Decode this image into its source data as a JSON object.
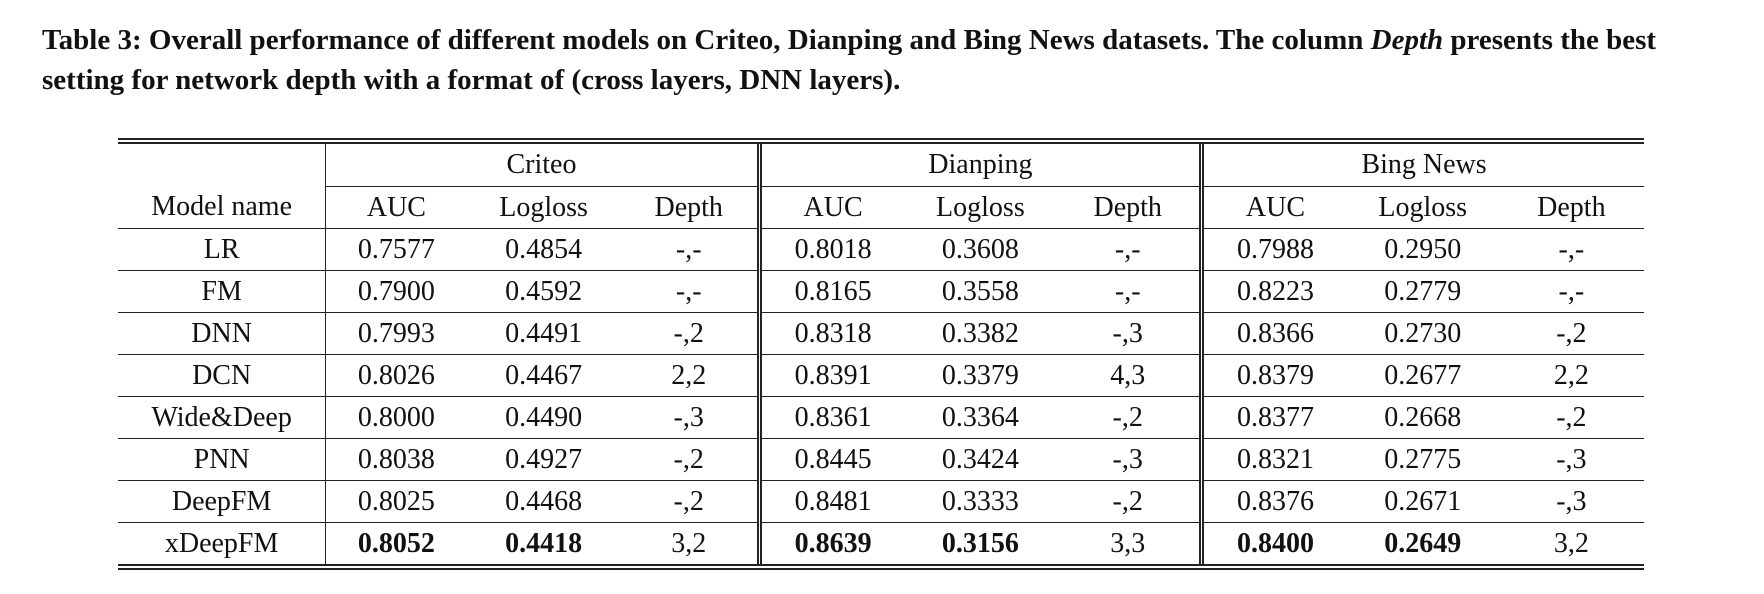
{
  "caption": {
    "label": "Table 3: Overall performance of different models on Criteo, Dianping and Bing News datasets. The column",
    "emph": "Depth",
    "rest": "presents the best setting for network depth with a format of (cross layers, DNN layers)."
  },
  "table": {
    "groups": [
      "Criteo",
      "Dianping",
      "Bing News"
    ],
    "model_header": "Model name",
    "sub_headers": [
      "AUC",
      "Logloss",
      "Depth"
    ],
    "rows": [
      {
        "model": "LR",
        "cells": [
          "0.7577",
          "0.4854",
          "-,-",
          "0.8018",
          "0.3608",
          "-,-",
          "0.7988",
          "0.2950",
          "-,-"
        ]
      },
      {
        "model": "FM",
        "cells": [
          "0.7900",
          "0.4592",
          "-,-",
          "0.8165",
          "0.3558",
          "-,-",
          "0.8223",
          "0.2779",
          "-,-"
        ]
      },
      {
        "model": "DNN",
        "cells": [
          "0.7993",
          "0.4491",
          "-,2",
          "0.8318",
          "0.3382",
          "-,3",
          "0.8366",
          "0.2730",
          "-,2"
        ]
      },
      {
        "model": "DCN",
        "cells": [
          "0.8026",
          "0.4467",
          "2,2",
          "0.8391",
          "0.3379",
          "4,3",
          "0.8379",
          "0.2677",
          "2,2"
        ]
      },
      {
        "model": "Wide&Deep",
        "cells": [
          "0.8000",
          "0.4490",
          "-,3",
          "0.8361",
          "0.3364",
          "-,2",
          "0.8377",
          "0.2668",
          "-,2"
        ]
      },
      {
        "model": "PNN",
        "cells": [
          "0.8038",
          "0.4927",
          "-,2",
          "0.8445",
          "0.3424",
          "-,3",
          "0.8321",
          "0.2775",
          "-,3"
        ]
      },
      {
        "model": "DeepFM",
        "cells": [
          "0.8025",
          "0.4468",
          "-,2",
          "0.8481",
          "0.3333",
          "-,2",
          "0.8376",
          "0.2671",
          "-,3"
        ]
      },
      {
        "model": "xDeepFM",
        "cells": [
          "0.8052",
          "0.4418",
          "3,2",
          "0.8639",
          "0.3156",
          "3,3",
          "0.8400",
          "0.2649",
          "3,2"
        ]
      }
    ],
    "bold_row_index": 7,
    "bold_cell_indices": [
      0,
      1,
      3,
      4,
      6,
      7
    ]
  }
}
